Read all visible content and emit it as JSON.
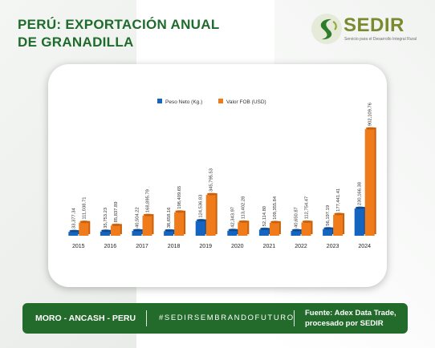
{
  "header": {
    "title_line1": "PERÚ: EXPORTACIÓN ANUAL",
    "title_line2": "DE GRANADILLA"
  },
  "logo": {
    "name": "SEDIR",
    "tagline": "Servicio para el Desarrollo Integral Rural"
  },
  "footer": {
    "location": "MORO - ANCASH - PERU",
    "hashtag": "#SEDIRSEMBRANDOFUTURO",
    "source_line1": "Fuente: Adex Data Trade,",
    "source_line2": "procesado por SEDIR"
  },
  "colors": {
    "brand_green": "#226b2b",
    "series_blue": "#1565c0",
    "series_orange": "#f07b1a"
  },
  "chart_data": {
    "type": "bar",
    "categories": [
      "2015",
      "2016",
      "2017",
      "2018",
      "2019",
      "2020",
      "2021",
      "2022",
      "2023",
      "2024"
    ],
    "series": [
      {
        "name": "Peso Neto (Kg.)",
        "values": [
          33377.34,
          35753.23,
          40504.22,
          38658.16,
          124536.83,
          42343.97,
          52114.8,
          40650.87,
          56197.19,
          230166.38
        ],
        "labels": [
          "33,377.34",
          "35,753.23",
          "40,504.22",
          "38,658.16",
          "124,536.83",
          "42,343.97",
          "52,114.80",
          "40,650.87",
          "56,197.19",
          "230,166.38"
        ]
      },
      {
        "name": "Valor FOB (USD)",
        "values": [
          111038.71,
          85837.89,
          168895.79,
          198409.65,
          345795.53,
          113402.28,
          109355.84,
          112754.47,
          177441.41,
          902109.76
        ],
        "labels": [
          "111,038.71",
          "85,837.89",
          "168,895.79",
          "198,409.65",
          "345,795.53",
          "113,402.28",
          "109,355.84",
          "112,754.47",
          "177,441.41",
          "902,109.76"
        ]
      }
    ],
    "legend_position": "top",
    "grid": false,
    "ylim": [
      0,
      950000
    ]
  }
}
